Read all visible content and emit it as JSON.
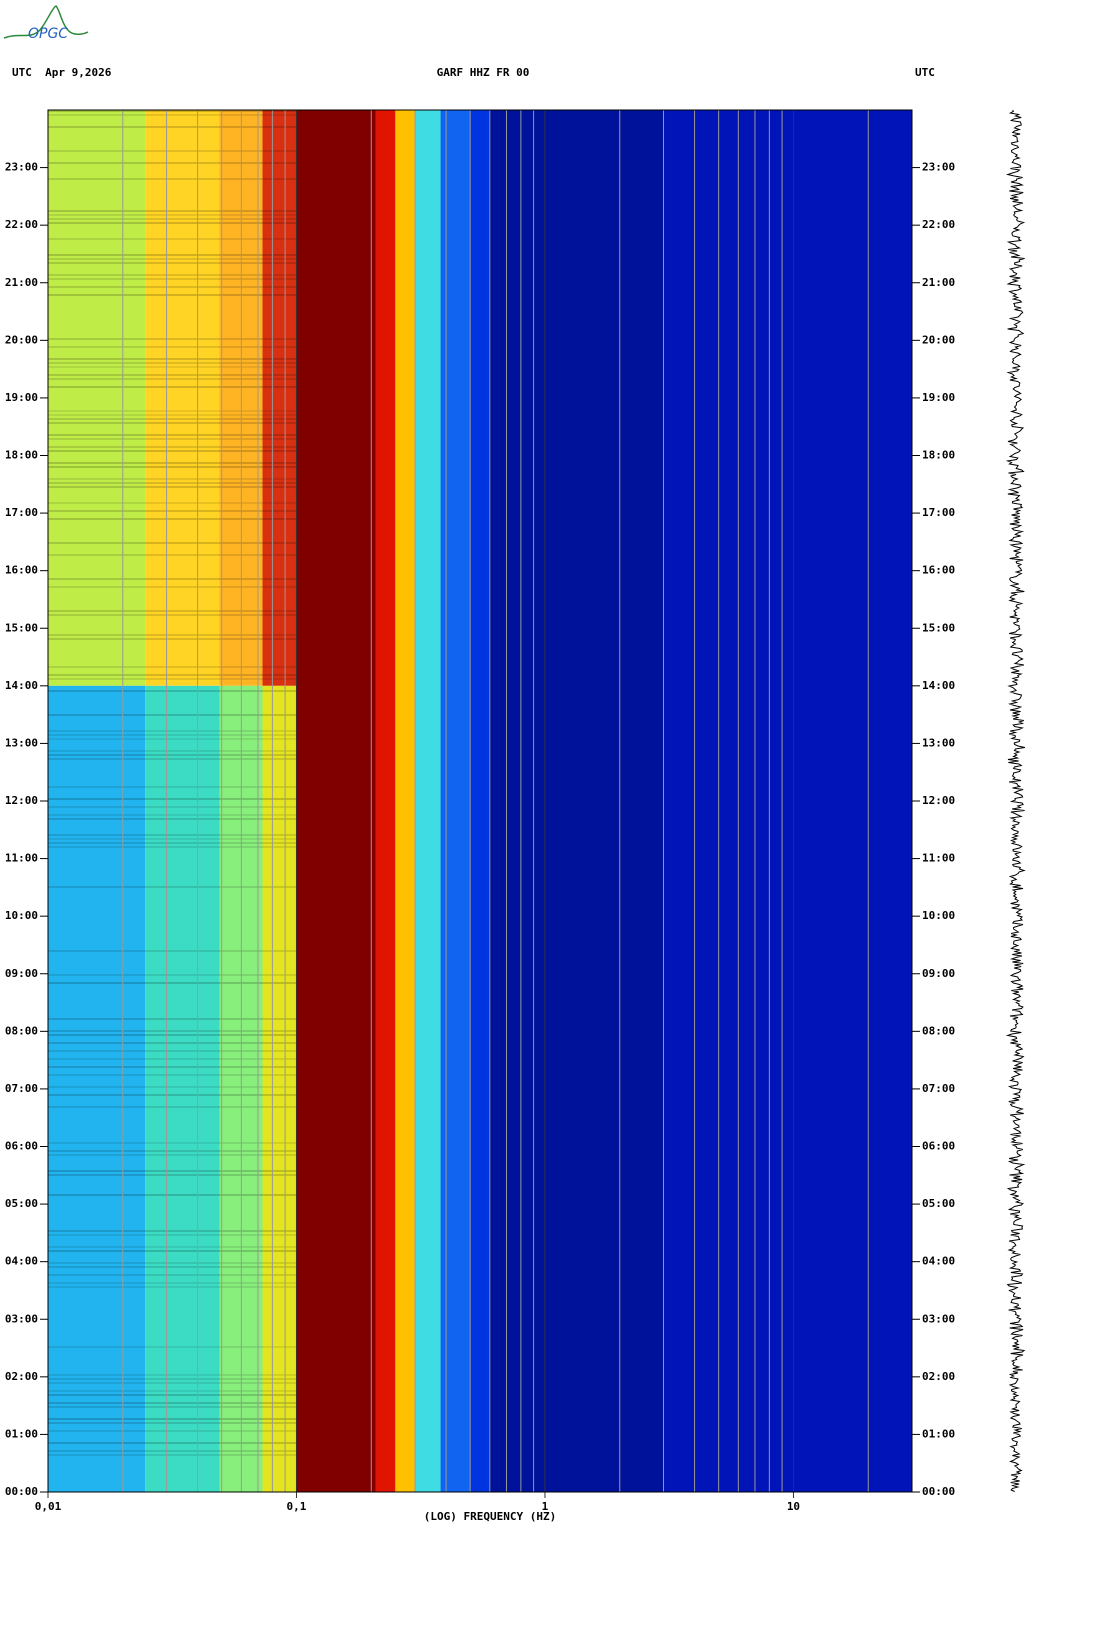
{
  "logo": "OPGC",
  "chart_data": {
    "type": "spectrogram",
    "header_left": "UTC  Apr 9,2026",
    "title": "GARF HHZ FR 00",
    "header_right": "UTC",
    "xlabel": "(LOG) FREQUENCY (HZ)",
    "xscale": "log",
    "xlim": [
      0.01,
      30
    ],
    "xticks": [
      {
        "value": 0.01,
        "label": "0,01"
      },
      {
        "value": 0.1,
        "label": "0,1"
      },
      1,
      10
    ],
    "xgrid": [
      0.02,
      0.03,
      0.04,
      0.05,
      0.06,
      0.07,
      0.08,
      0.09,
      0.2,
      0.3,
      0.4,
      0.5,
      0.6,
      0.7,
      0.8,
      0.9,
      2,
      3,
      4,
      5,
      6,
      7,
      8,
      9,
      20
    ],
    "ylim": [
      0,
      24
    ],
    "yticks": [
      {
        "value": 0,
        "label": "00:00"
      },
      {
        "value": 1,
        "label": "01:00"
      },
      {
        "value": 2,
        "label": "02:00"
      },
      {
        "value": 3,
        "label": "03:00"
      },
      {
        "value": 4,
        "label": "04:00"
      },
      {
        "value": 5,
        "label": "05:00"
      },
      {
        "value": 6,
        "label": "06:00"
      },
      {
        "value": 7,
        "label": "07:00"
      },
      {
        "value": 8,
        "label": "08:00"
      },
      {
        "value": 9,
        "label": "09:00"
      },
      {
        "value": 10,
        "label": "10:00"
      },
      {
        "value": 11,
        "label": "11:00"
      },
      {
        "value": 12,
        "label": "12:00"
      },
      {
        "value": 13,
        "label": "13:00"
      },
      {
        "value": 14,
        "label": "14:00"
      },
      {
        "value": 15,
        "label": "15:00"
      },
      {
        "value": 16,
        "label": "16:00"
      },
      {
        "value": 17,
        "label": "17:00"
      },
      {
        "value": 18,
        "label": "18:00"
      },
      {
        "value": 19,
        "label": "19:00"
      },
      {
        "value": 20,
        "label": "20:00"
      },
      {
        "value": 21,
        "label": "21:00"
      },
      {
        "value": 22,
        "label": "22:00"
      },
      {
        "value": 23,
        "label": "23:00"
      }
    ],
    "bands": [
      {
        "f": [
          0.01,
          0.0246
        ],
        "t": [
          14,
          24
        ],
        "color": "#c0ec48"
      },
      {
        "f": [
          0.01,
          0.0246
        ],
        "t": [
          0,
          14
        ],
        "color": "#22b4ee"
      },
      {
        "f": [
          0.0246,
          0.049
        ],
        "t": [
          14,
          24
        ],
        "color": "#ffd424"
      },
      {
        "f": [
          0.0246,
          0.049
        ],
        "t": [
          0,
          14
        ],
        "color": "#3cdcc4"
      },
      {
        "f": [
          0.049,
          0.073
        ],
        "t": [
          14,
          24
        ],
        "color": "#ffb424"
      },
      {
        "f": [
          0.049,
          0.073
        ],
        "t": [
          0,
          14
        ],
        "color": "#88ee7c"
      },
      {
        "f": [
          0.073,
          0.1
        ],
        "t": [
          14,
          24
        ],
        "color": "#d83010"
      },
      {
        "f": [
          0.073,
          0.1
        ],
        "t": [
          0,
          14
        ],
        "color": "#e4e420"
      },
      {
        "f": [
          0.1,
          0.208
        ],
        "t": [
          0,
          24
        ],
        "color": "#800000"
      },
      {
        "f": [
          0.208,
          0.25
        ],
        "t": [
          0,
          24
        ],
        "color": "#e01400"
      },
      {
        "f": [
          0.25,
          0.3
        ],
        "t": [
          0,
          24
        ],
        "color": "#ffc000"
      },
      {
        "f": [
          0.3,
          0.38
        ],
        "t": [
          0,
          24
        ],
        "color": "#40dce4"
      },
      {
        "f": [
          0.38,
          0.5
        ],
        "t": [
          0,
          24
        ],
        "color": "#1064f0"
      },
      {
        "f": [
          0.5,
          0.6
        ],
        "t": [
          0,
          24
        ],
        "color": "#0034e0"
      },
      {
        "f": [
          0.6,
          3
        ],
        "t": [
          0,
          24
        ],
        "color": "#00129a"
      },
      {
        "f": [
          3,
          30
        ],
        "t": [
          0,
          24
        ],
        "color": "#0014b8"
      }
    ]
  }
}
